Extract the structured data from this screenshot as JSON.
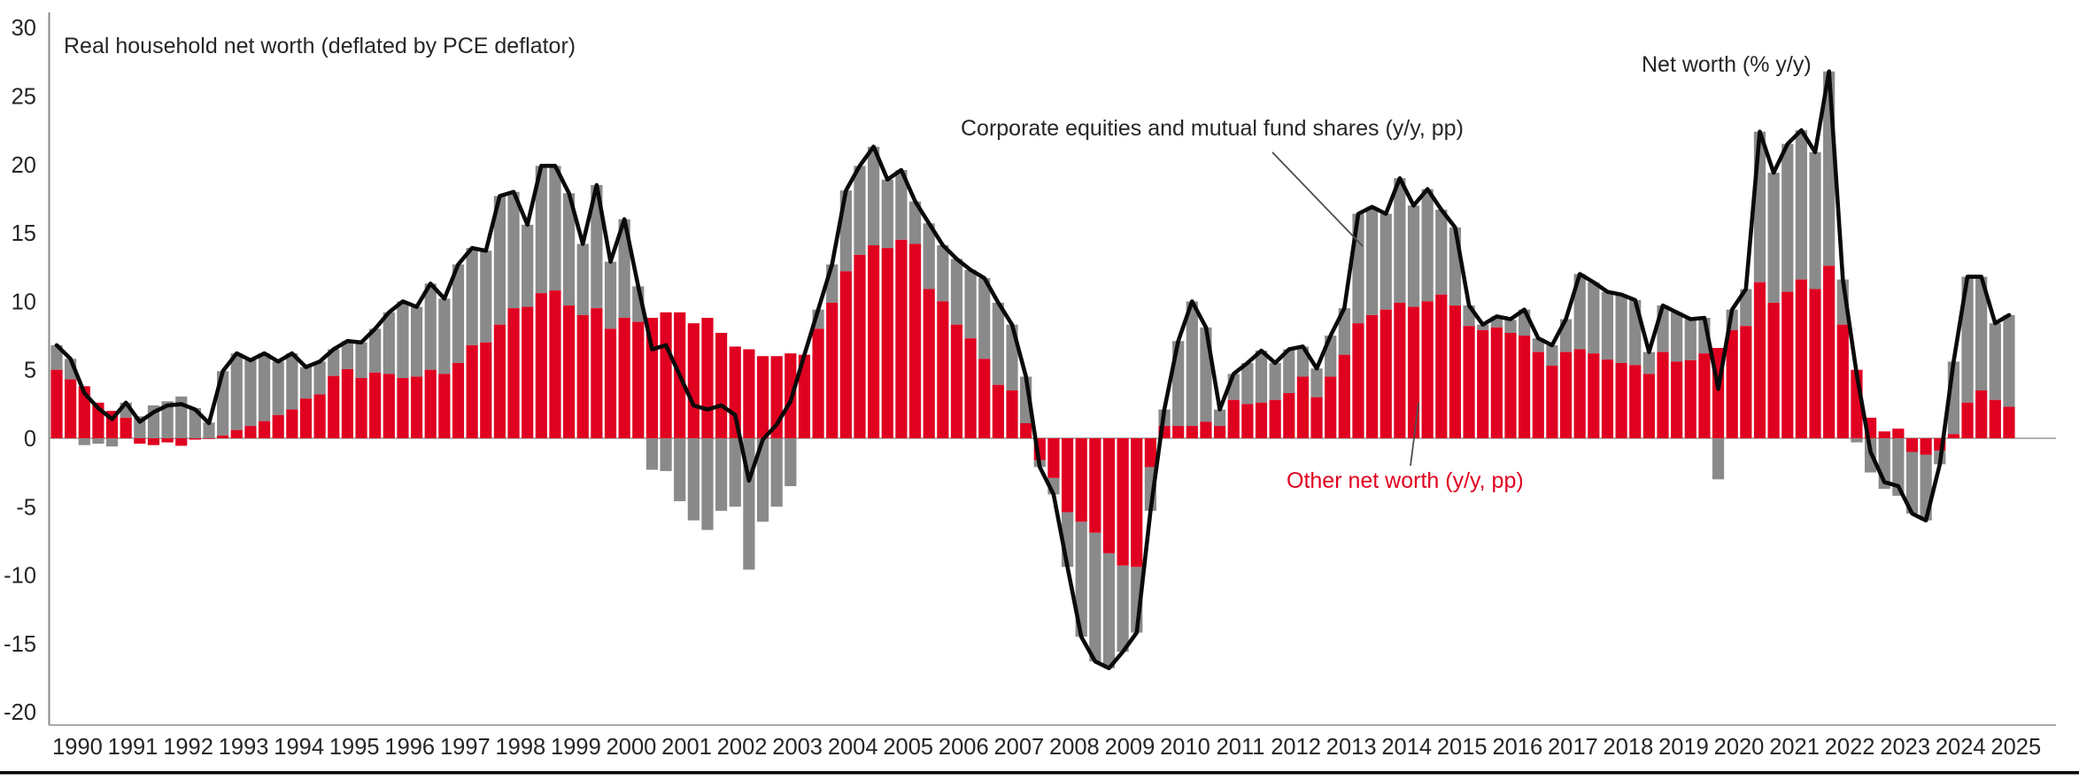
{
  "title": "Real household net worth (deflated by PCE deflator)",
  "annotations": {
    "line_label": "Net worth (% y/y)",
    "equities_label": "Corporate equities and mutual fund shares (y/y, pp)",
    "other_label": "Other net worth (y/y, pp)"
  },
  "colors": {
    "equities_bar": "#8a8a8a",
    "other_bar": "#e00020",
    "net_worth_line": "#0a0a0a",
    "zero_line": "#999999",
    "axis_line": "#888888",
    "baseline": "#aaaaaa",
    "text": "#262626",
    "bottom_border": "#000000"
  },
  "axis": {
    "y_ticks": [
      30,
      25,
      20,
      15,
      10,
      5,
      0,
      -5,
      -10,
      -15,
      -20
    ],
    "x_years": [
      "1990",
      "1991",
      "1992",
      "1993",
      "1994",
      "1995",
      "1996",
      "1997",
      "1998",
      "1999",
      "2000",
      "2001",
      "2002",
      "2003",
      "2004",
      "2005",
      "2006",
      "2007",
      "2008",
      "2009",
      "2010",
      "2011",
      "2012",
      "2013",
      "2014",
      "2015",
      "2016",
      "2017",
      "2018",
      "2019",
      "2020",
      "2021",
      "2022",
      "2023",
      "2024",
      "2025"
    ],
    "ylim": [
      -20,
      30
    ]
  },
  "chart_data": {
    "type": "bar",
    "subtype": "stacked-bars-with-total-line",
    "title": "Real household net worth (deflated by PCE deflator)",
    "xlabel": "",
    "ylabel": "",
    "ylim": [
      -20,
      30
    ],
    "grid": false,
    "legend_position": "inline-annotations",
    "x": [
      "1990Q1",
      "1990Q2",
      "1990Q3",
      "1990Q4",
      "1991Q1",
      "1991Q2",
      "1991Q3",
      "1991Q4",
      "1992Q1",
      "1992Q2",
      "1992Q3",
      "1992Q4",
      "1993Q1",
      "1993Q2",
      "1993Q3",
      "1993Q4",
      "1994Q1",
      "1994Q2",
      "1994Q3",
      "1994Q4",
      "1995Q1",
      "1995Q2",
      "1995Q3",
      "1995Q4",
      "1996Q1",
      "1996Q2",
      "1996Q3",
      "1996Q4",
      "1997Q1",
      "1997Q2",
      "1997Q3",
      "1997Q4",
      "1998Q1",
      "1998Q2",
      "1998Q3",
      "1998Q4",
      "1999Q1",
      "1999Q2",
      "1999Q3",
      "1999Q4",
      "2000Q1",
      "2000Q2",
      "2000Q3",
      "2000Q4",
      "2001Q1",
      "2001Q2",
      "2001Q3",
      "2001Q4",
      "2002Q1",
      "2002Q2",
      "2002Q3",
      "2002Q4",
      "2003Q1",
      "2003Q2",
      "2003Q3",
      "2003Q4",
      "2004Q1",
      "2004Q2",
      "2004Q3",
      "2004Q4",
      "2005Q1",
      "2005Q2",
      "2005Q3",
      "2005Q4",
      "2006Q1",
      "2006Q2",
      "2006Q3",
      "2006Q4",
      "2007Q1",
      "2007Q2",
      "2007Q3",
      "2007Q4",
      "2008Q1",
      "2008Q2",
      "2008Q3",
      "2008Q4",
      "2009Q1",
      "2009Q2",
      "2009Q3",
      "2009Q4",
      "2010Q1",
      "2010Q2",
      "2010Q3",
      "2010Q4",
      "2011Q1",
      "2011Q2",
      "2011Q3",
      "2011Q4",
      "2012Q1",
      "2012Q2",
      "2012Q3",
      "2012Q4",
      "2013Q1",
      "2013Q2",
      "2013Q3",
      "2013Q4",
      "2014Q1",
      "2014Q2",
      "2014Q3",
      "2014Q4",
      "2015Q1",
      "2015Q2",
      "2015Q3",
      "2015Q4",
      "2016Q1",
      "2016Q2",
      "2016Q3",
      "2016Q4",
      "2017Q1",
      "2017Q2",
      "2017Q3",
      "2017Q4",
      "2018Q1",
      "2018Q2",
      "2018Q3",
      "2018Q4",
      "2019Q1",
      "2019Q2",
      "2019Q3",
      "2019Q4",
      "2020Q1",
      "2020Q2",
      "2020Q3",
      "2020Q4",
      "2021Q1",
      "2021Q2",
      "2021Q3",
      "2021Q4",
      "2022Q1",
      "2022Q2",
      "2022Q3",
      "2022Q4",
      "2023Q1",
      "2023Q2",
      "2023Q3",
      "2023Q4",
      "2024Q1",
      "2024Q2",
      "2024Q3",
      "2024Q4",
      "2025Q1",
      "2025Q2"
    ],
    "series": [
      {
        "name": "Other net worth (y/y, pp)",
        "type": "bar",
        "color": "#e00020",
        "values": [
          5.0,
          4.3,
          3.8,
          2.6,
          2.0,
          1.5,
          -0.4,
          -0.5,
          -0.3,
          -0.55,
          -0.1,
          -0.05,
          0.2,
          0.6,
          0.9,
          1.25,
          1.7,
          2.1,
          2.9,
          3.2,
          4.55,
          5.05,
          4.4,
          4.8,
          4.7,
          4.4,
          4.5,
          5.0,
          4.7,
          5.5,
          6.8,
          7.0,
          8.3,
          9.5,
          9.6,
          10.6,
          10.8,
          9.7,
          9.0,
          9.5,
          8.0,
          8.8,
          8.5,
          8.8,
          9.2,
          9.2,
          8.4,
          8.8,
          7.7,
          6.7,
          6.5,
          6.0,
          6.0,
          6.2,
          6.1,
          8.0,
          9.9,
          12.2,
          13.4,
          14.1,
          13.9,
          14.5,
          14.2,
          10.9,
          10.0,
          8.3,
          7.3,
          5.8,
          3.9,
          3.5,
          1.1,
          -1.6,
          -2.9,
          -5.4,
          -6.1,
          -6.9,
          -8.4,
          -9.3,
          -9.4,
          -2.1,
          0.9,
          0.9,
          0.9,
          1.2,
          0.9,
          2.8,
          2.5,
          2.6,
          2.8,
          3.3,
          4.5,
          3.0,
          4.5,
          6.1,
          8.4,
          9.0,
          9.4,
          9.9,
          9.6,
          10.0,
          10.5,
          9.7,
          8.2,
          7.9,
          8.1,
          7.7,
          7.5,
          6.3,
          5.3,
          6.3,
          6.5,
          6.2,
          5.75,
          5.5,
          5.35,
          4.7,
          6.3,
          5.6,
          5.7,
          6.2,
          6.6,
          7.9,
          8.2,
          11.4,
          9.9,
          10.7,
          11.6,
          10.9,
          12.6,
          8.3,
          5.0,
          1.5,
          0.5,
          0.7,
          -1.0,
          -1.2,
          -0.9,
          0.3,
          2.6,
          3.5,
          2.8,
          2.3
        ]
      },
      {
        "name": "Corporate equities and mutual fund shares (y/y, pp)",
        "type": "bar",
        "color": "#8a8a8a",
        "values": [
          1.8,
          1.5,
          -0.5,
          -0.4,
          -0.6,
          1.1,
          1.6,
          2.4,
          2.7,
          3.05,
          2.2,
          1.15,
          4.7,
          5.6,
          4.8,
          4.95,
          3.9,
          4.1,
          2.3,
          2.4,
          1.95,
          2.05,
          2.6,
          3.2,
          4.5,
          5.6,
          5.1,
          6.3,
          5.5,
          7.2,
          7.1,
          6.7,
          9.4,
          8.5,
          6.0,
          9.3,
          9.1,
          8.2,
          5.2,
          9.0,
          4.9,
          7.2,
          2.6,
          -2.3,
          -2.4,
          -4.6,
          -6.0,
          -6.7,
          -5.3,
          -5.0,
          -9.6,
          -6.1,
          -5.0,
          -3.5,
          0.0,
          1.4,
          2.8,
          5.9,
          6.5,
          7.2,
          5.0,
          5.1,
          3.1,
          4.8,
          4.1,
          4.8,
          5.0,
          5.9,
          6.0,
          4.8,
          3.4,
          -0.5,
          -1.2,
          -4.0,
          -8.4,
          -9.4,
          -8.4,
          -6.3,
          -4.8,
          -3.2,
          1.2,
          6.2,
          9.1,
          6.9,
          1.2,
          1.9,
          3.0,
          3.8,
          2.7,
          3.2,
          2.2,
          2.1,
          3.0,
          3.4,
          8.0,
          7.9,
          7.0,
          9.1,
          7.4,
          8.2,
          6.2,
          5.7,
          1.5,
          0.4,
          0.8,
          0.95,
          1.9,
          1.0,
          1.5,
          2.4,
          5.5,
          5.2,
          4.95,
          5.0,
          4.75,
          1.6,
          3.4,
          3.6,
          3.0,
          2.6,
          -3.0,
          1.5,
          2.7,
          11.0,
          9.5,
          10.8,
          10.9,
          10.0,
          14.2,
          3.3,
          -0.3,
          -2.5,
          -3.7,
          -4.2,
          -4.5,
          -4.8,
          -1.0,
          5.3,
          9.2,
          8.3,
          5.6,
          6.7
        ]
      },
      {
        "name": "Net worth (% y/y)",
        "type": "line",
        "color": "#0a0a0a",
        "values": [
          6.8,
          5.8,
          3.3,
          2.2,
          1.4,
          2.6,
          1.2,
          1.9,
          2.4,
          2.5,
          2.1,
          1.1,
          4.9,
          6.2,
          5.7,
          6.2,
          5.6,
          6.2,
          5.2,
          5.6,
          6.5,
          7.1,
          7.0,
          8.0,
          9.2,
          10.0,
          9.6,
          11.3,
          10.2,
          12.7,
          13.9,
          13.7,
          17.7,
          18.0,
          15.6,
          19.9,
          19.9,
          17.9,
          14.2,
          18.5,
          12.9,
          16.0,
          11.1,
          6.5,
          6.8,
          4.6,
          2.4,
          2.1,
          2.4,
          1.7,
          -3.1,
          -0.1,
          1.0,
          2.7,
          6.1,
          9.4,
          12.7,
          18.1,
          19.9,
          21.3,
          18.9,
          19.6,
          17.3,
          15.7,
          14.1,
          13.1,
          12.3,
          11.7,
          9.9,
          8.3,
          4.5,
          -2.1,
          -4.1,
          -9.4,
          -14.5,
          -16.3,
          -16.8,
          -15.6,
          -14.2,
          -5.3,
          2.1,
          7.1,
          10.0,
          8.1,
          2.1,
          4.7,
          5.5,
          6.4,
          5.5,
          6.5,
          6.7,
          5.1,
          7.5,
          9.5,
          16.4,
          16.9,
          16.4,
          19.0,
          17.0,
          18.2,
          16.7,
          15.4,
          9.7,
          8.3,
          8.9,
          8.7,
          9.4,
          7.3,
          6.8,
          8.7,
          12.0,
          11.4,
          10.7,
          10.5,
          10.1,
          6.3,
          9.7,
          9.2,
          8.7,
          8.8,
          3.6,
          9.4,
          10.9,
          22.4,
          19.4,
          21.5,
          22.5,
          20.9,
          26.8,
          11.6,
          4.7,
          -1.0,
          -3.2,
          -3.5,
          -5.5,
          -6.0,
          -1.9,
          5.6,
          11.8,
          11.8,
          8.4,
          9.0
        ]
      }
    ]
  }
}
